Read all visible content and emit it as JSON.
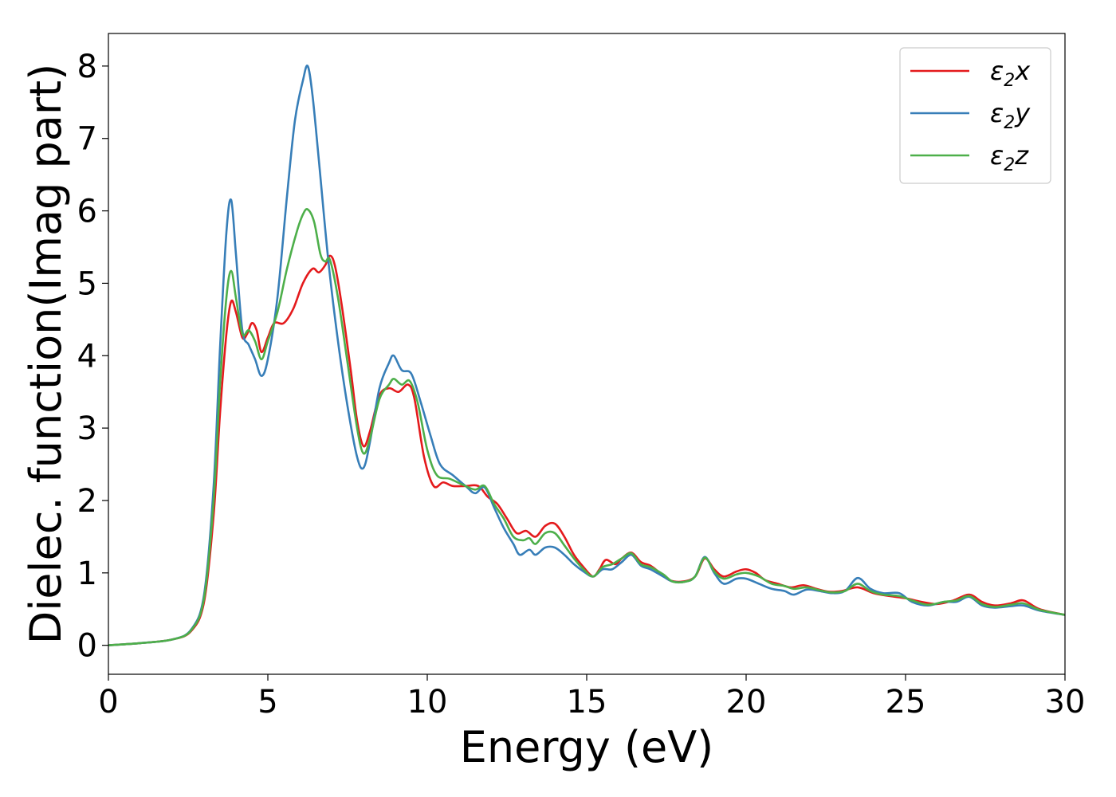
{
  "chart_data": {
    "type": "line",
    "xlabel": "Energy (eV)",
    "ylabel": "Dielec. function(Imag part)",
    "xlim": [
      0,
      30
    ],
    "ylim": [
      -0.4,
      8.45
    ],
    "x_ticks": [
      "0",
      "5",
      "10",
      "15",
      "20",
      "25",
      "30"
    ],
    "y_ticks": [
      "0",
      "1",
      "2",
      "3",
      "4",
      "5",
      "6",
      "7",
      "8"
    ],
    "grid": false,
    "legend_position": "top-right",
    "series": [
      {
        "name": "ε2x",
        "legend_base": "ε",
        "legend_sub": "2",
        "legend_suffix": "x",
        "color": "#e41a1c",
        "points": [
          [
            0,
            0
          ],
          [
            1,
            0.03
          ],
          [
            2,
            0.08
          ],
          [
            2.6,
            0.2
          ],
          [
            3.0,
            0.6
          ],
          [
            3.3,
            1.8
          ],
          [
            3.5,
            3.2
          ],
          [
            3.7,
            4.3
          ],
          [
            3.85,
            4.75
          ],
          [
            4.0,
            4.6
          ],
          [
            4.2,
            4.25
          ],
          [
            4.35,
            4.3
          ],
          [
            4.5,
            4.45
          ],
          [
            4.65,
            4.35
          ],
          [
            4.8,
            4.05
          ],
          [
            5.0,
            4.25
          ],
          [
            5.2,
            4.45
          ],
          [
            5.5,
            4.45
          ],
          [
            5.8,
            4.65
          ],
          [
            6.1,
            5.0
          ],
          [
            6.4,
            5.2
          ],
          [
            6.6,
            5.15
          ],
          [
            6.8,
            5.25
          ],
          [
            6.95,
            5.38
          ],
          [
            7.1,
            5.25
          ],
          [
            7.3,
            4.75
          ],
          [
            7.6,
            3.8
          ],
          [
            7.8,
            3.1
          ],
          [
            8.0,
            2.75
          ],
          [
            8.2,
            2.95
          ],
          [
            8.5,
            3.45
          ],
          [
            8.8,
            3.55
          ],
          [
            9.1,
            3.5
          ],
          [
            9.4,
            3.6
          ],
          [
            9.6,
            3.4
          ],
          [
            9.9,
            2.6
          ],
          [
            10.2,
            2.2
          ],
          [
            10.5,
            2.25
          ],
          [
            10.8,
            2.2
          ],
          [
            11.2,
            2.2
          ],
          [
            11.6,
            2.2
          ],
          [
            11.9,
            2.05
          ],
          [
            12.2,
            1.95
          ],
          [
            12.5,
            1.75
          ],
          [
            12.8,
            1.55
          ],
          [
            13.1,
            1.58
          ],
          [
            13.4,
            1.5
          ],
          [
            13.7,
            1.65
          ],
          [
            14.0,
            1.68
          ],
          [
            14.3,
            1.5
          ],
          [
            14.6,
            1.25
          ],
          [
            14.9,
            1.08
          ],
          [
            15.2,
            0.95
          ],
          [
            15.4,
            1.05
          ],
          [
            15.6,
            1.18
          ],
          [
            15.9,
            1.12
          ],
          [
            16.1,
            1.2
          ],
          [
            16.4,
            1.28
          ],
          [
            16.7,
            1.15
          ],
          [
            17.0,
            1.1
          ],
          [
            17.3,
            1.0
          ],
          [
            17.6,
            0.9
          ],
          [
            18.0,
            0.88
          ],
          [
            18.4,
            0.95
          ],
          [
            18.7,
            1.2
          ],
          [
            19.0,
            1.05
          ],
          [
            19.3,
            0.95
          ],
          [
            19.7,
            1.02
          ],
          [
            20.0,
            1.05
          ],
          [
            20.3,
            1.0
          ],
          [
            20.6,
            0.9
          ],
          [
            21.0,
            0.85
          ],
          [
            21.4,
            0.8
          ],
          [
            21.8,
            0.83
          ],
          [
            22.2,
            0.78
          ],
          [
            22.6,
            0.74
          ],
          [
            23.0,
            0.75
          ],
          [
            23.5,
            0.8
          ],
          [
            24.0,
            0.72
          ],
          [
            24.5,
            0.68
          ],
          [
            25.0,
            0.65
          ],
          [
            25.5,
            0.6
          ],
          [
            26.0,
            0.57
          ],
          [
            26.5,
            0.62
          ],
          [
            27.0,
            0.7
          ],
          [
            27.4,
            0.6
          ],
          [
            27.8,
            0.55
          ],
          [
            28.3,
            0.58
          ],
          [
            28.7,
            0.62
          ],
          [
            29.2,
            0.5
          ],
          [
            30.0,
            0.42
          ]
        ]
      },
      {
        "name": "ε2y",
        "legend_base": "ε",
        "legend_sub": "2",
        "legend_suffix": "y",
        "color": "#377eb8",
        "points": [
          [
            0,
            0
          ],
          [
            1,
            0.03
          ],
          [
            2,
            0.08
          ],
          [
            2.6,
            0.22
          ],
          [
            3.0,
            0.7
          ],
          [
            3.3,
            2.2
          ],
          [
            3.5,
            4.1
          ],
          [
            3.7,
            5.7
          ],
          [
            3.85,
            6.15
          ],
          [
            4.0,
            5.4
          ],
          [
            4.2,
            4.35
          ],
          [
            4.4,
            4.15
          ],
          [
            4.6,
            3.95
          ],
          [
            4.8,
            3.72
          ],
          [
            5.0,
            3.95
          ],
          [
            5.3,
            4.8
          ],
          [
            5.6,
            6.2
          ],
          [
            5.85,
            7.25
          ],
          [
            6.1,
            7.8
          ],
          [
            6.25,
            8.0
          ],
          [
            6.4,
            7.6
          ],
          [
            6.6,
            6.7
          ],
          [
            6.9,
            5.3
          ],
          [
            7.2,
            4.2
          ],
          [
            7.5,
            3.3
          ],
          [
            7.8,
            2.6
          ],
          [
            8.0,
            2.45
          ],
          [
            8.2,
            2.8
          ],
          [
            8.5,
            3.55
          ],
          [
            8.8,
            3.9
          ],
          [
            8.95,
            4.0
          ],
          [
            9.2,
            3.8
          ],
          [
            9.5,
            3.75
          ],
          [
            9.8,
            3.35
          ],
          [
            10.1,
            2.9
          ],
          [
            10.4,
            2.5
          ],
          [
            10.8,
            2.35
          ],
          [
            11.2,
            2.2
          ],
          [
            11.5,
            2.1
          ],
          [
            11.8,
            2.18
          ],
          [
            12.1,
            1.9
          ],
          [
            12.4,
            1.62
          ],
          [
            12.7,
            1.4
          ],
          [
            12.9,
            1.25
          ],
          [
            13.2,
            1.32
          ],
          [
            13.4,
            1.25
          ],
          [
            13.7,
            1.35
          ],
          [
            14.0,
            1.35
          ],
          [
            14.3,
            1.25
          ],
          [
            14.6,
            1.12
          ],
          [
            14.9,
            1.02
          ],
          [
            15.2,
            0.95
          ],
          [
            15.5,
            1.05
          ],
          [
            15.8,
            1.05
          ],
          [
            16.1,
            1.15
          ],
          [
            16.4,
            1.25
          ],
          [
            16.7,
            1.1
          ],
          [
            17.0,
            1.05
          ],
          [
            17.4,
            0.95
          ],
          [
            17.7,
            0.88
          ],
          [
            18.1,
            0.88
          ],
          [
            18.4,
            0.95
          ],
          [
            18.7,
            1.22
          ],
          [
            19.0,
            1.0
          ],
          [
            19.3,
            0.85
          ],
          [
            19.7,
            0.92
          ],
          [
            20.0,
            0.92
          ],
          [
            20.4,
            0.85
          ],
          [
            20.8,
            0.78
          ],
          [
            21.2,
            0.75
          ],
          [
            21.5,
            0.7
          ],
          [
            21.9,
            0.77
          ],
          [
            22.3,
            0.75
          ],
          [
            22.7,
            0.72
          ],
          [
            23.1,
            0.75
          ],
          [
            23.5,
            0.93
          ],
          [
            23.9,
            0.78
          ],
          [
            24.3,
            0.72
          ],
          [
            24.8,
            0.72
          ],
          [
            25.2,
            0.6
          ],
          [
            25.7,
            0.55
          ],
          [
            26.2,
            0.6
          ],
          [
            26.6,
            0.6
          ],
          [
            27.0,
            0.67
          ],
          [
            27.4,
            0.55
          ],
          [
            27.8,
            0.52
          ],
          [
            28.3,
            0.54
          ],
          [
            28.7,
            0.55
          ],
          [
            29.2,
            0.48
          ],
          [
            30.0,
            0.42
          ]
        ]
      },
      {
        "name": "ε2z",
        "legend_base": "ε",
        "legend_sub": "2",
        "legend_suffix": "z",
        "color": "#4daf4a",
        "points": [
          [
            0,
            0
          ],
          [
            1,
            0.03
          ],
          [
            2,
            0.08
          ],
          [
            2.6,
            0.21
          ],
          [
            3.0,
            0.65
          ],
          [
            3.3,
            2.0
          ],
          [
            3.5,
            3.6
          ],
          [
            3.7,
            4.8
          ],
          [
            3.85,
            5.17
          ],
          [
            4.0,
            4.8
          ],
          [
            4.2,
            4.3
          ],
          [
            4.4,
            4.35
          ],
          [
            4.6,
            4.2
          ],
          [
            4.8,
            3.95
          ],
          [
            5.0,
            4.2
          ],
          [
            5.3,
            4.6
          ],
          [
            5.6,
            5.2
          ],
          [
            5.9,
            5.7
          ],
          [
            6.1,
            5.95
          ],
          [
            6.25,
            6.02
          ],
          [
            6.45,
            5.85
          ],
          [
            6.65,
            5.4
          ],
          [
            6.8,
            5.3
          ],
          [
            6.95,
            5.32
          ],
          [
            7.2,
            4.8
          ],
          [
            7.5,
            3.9
          ],
          [
            7.8,
            3.0
          ],
          [
            8.0,
            2.65
          ],
          [
            8.2,
            2.85
          ],
          [
            8.5,
            3.4
          ],
          [
            8.8,
            3.6
          ],
          [
            8.95,
            3.68
          ],
          [
            9.2,
            3.6
          ],
          [
            9.45,
            3.65
          ],
          [
            9.7,
            3.35
          ],
          [
            10.0,
            2.7
          ],
          [
            10.3,
            2.35
          ],
          [
            10.7,
            2.3
          ],
          [
            11.1,
            2.22
          ],
          [
            11.5,
            2.15
          ],
          [
            11.8,
            2.2
          ],
          [
            12.1,
            1.95
          ],
          [
            12.4,
            1.75
          ],
          [
            12.7,
            1.5
          ],
          [
            13.0,
            1.45
          ],
          [
            13.2,
            1.48
          ],
          [
            13.4,
            1.4
          ],
          [
            13.7,
            1.55
          ],
          [
            14.0,
            1.55
          ],
          [
            14.3,
            1.38
          ],
          [
            14.6,
            1.2
          ],
          [
            14.9,
            1.05
          ],
          [
            15.2,
            0.95
          ],
          [
            15.5,
            1.08
          ],
          [
            15.8,
            1.12
          ],
          [
            16.1,
            1.2
          ],
          [
            16.4,
            1.27
          ],
          [
            16.7,
            1.12
          ],
          [
            17.0,
            1.08
          ],
          [
            17.4,
            0.98
          ],
          [
            17.7,
            0.88
          ],
          [
            18.1,
            0.88
          ],
          [
            18.4,
            0.95
          ],
          [
            18.7,
            1.21
          ],
          [
            19.0,
            1.02
          ],
          [
            19.3,
            0.92
          ],
          [
            19.7,
            0.98
          ],
          [
            20.0,
            1.0
          ],
          [
            20.4,
            0.95
          ],
          [
            20.8,
            0.85
          ],
          [
            21.2,
            0.82
          ],
          [
            21.5,
            0.78
          ],
          [
            21.9,
            0.8
          ],
          [
            22.3,
            0.76
          ],
          [
            22.7,
            0.73
          ],
          [
            23.1,
            0.75
          ],
          [
            23.5,
            0.85
          ],
          [
            23.9,
            0.75
          ],
          [
            24.3,
            0.7
          ],
          [
            24.8,
            0.68
          ],
          [
            25.2,
            0.62
          ],
          [
            25.7,
            0.56
          ],
          [
            26.2,
            0.6
          ],
          [
            26.6,
            0.62
          ],
          [
            27.0,
            0.68
          ],
          [
            27.4,
            0.57
          ],
          [
            27.8,
            0.53
          ],
          [
            28.3,
            0.56
          ],
          [
            28.7,
            0.58
          ],
          [
            29.2,
            0.49
          ],
          [
            30.0,
            0.42
          ]
        ]
      }
    ]
  }
}
